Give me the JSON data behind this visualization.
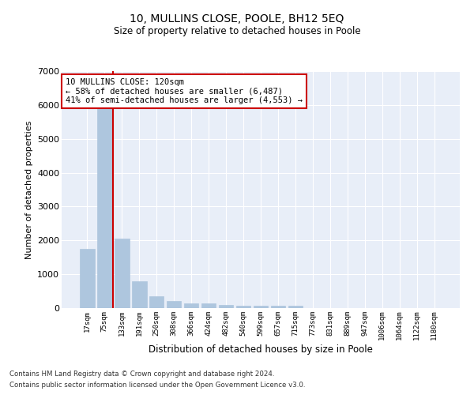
{
  "title": "10, MULLINS CLOSE, POOLE, BH12 5EQ",
  "subtitle": "Size of property relative to detached houses in Poole",
  "xlabel": "Distribution of detached houses by size in Poole",
  "ylabel": "Number of detached properties",
  "bar_color": "#aec6de",
  "bar_edge_color": "#aec6de",
  "vline_color": "#cc0000",
  "annotation_text": "10 MULLINS CLOSE: 120sqm\n← 58% of detached houses are smaller (6,487)\n41% of semi-detached houses are larger (4,553) →",
  "annotation_box_color": "#ffffff",
  "annotation_box_edge": "#cc0000",
  "categories": [
    "17sqm",
    "75sqm",
    "133sqm",
    "191sqm",
    "250sqm",
    "308sqm",
    "366sqm",
    "424sqm",
    "482sqm",
    "540sqm",
    "599sqm",
    "657sqm",
    "715sqm",
    "773sqm",
    "831sqm",
    "889sqm",
    "947sqm",
    "1006sqm",
    "1064sqm",
    "1122sqm",
    "1180sqm"
  ],
  "values": [
    1750,
    5900,
    2050,
    800,
    350,
    220,
    130,
    130,
    90,
    70,
    60,
    60,
    60,
    0,
    0,
    0,
    0,
    0,
    0,
    0,
    0
  ],
  "ylim": [
    0,
    7000
  ],
  "yticks": [
    0,
    1000,
    2000,
    3000,
    4000,
    5000,
    6000,
    7000
  ],
  "bg_color": "#e8eef8",
  "footnote1": "Contains HM Land Registry data © Crown copyright and database right 2024.",
  "footnote2": "Contains public sector information licensed under the Open Government Licence v3.0."
}
